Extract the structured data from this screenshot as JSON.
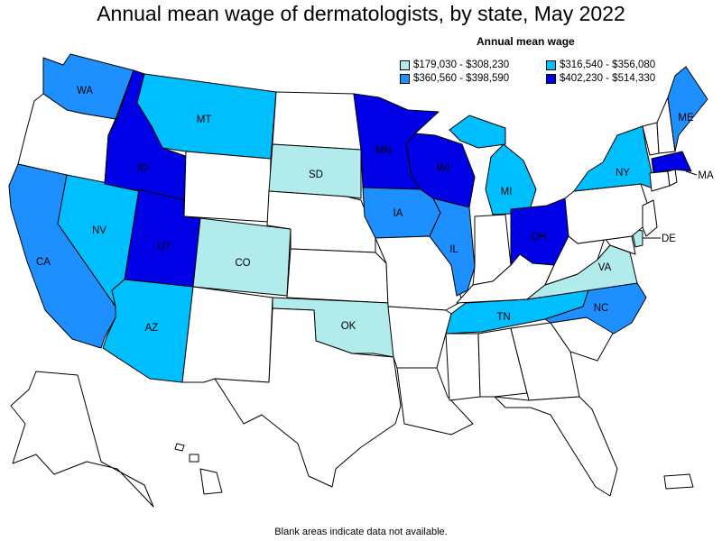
{
  "title": "Annual mean wage of dermatologists, by state, May 2022",
  "legend": {
    "title": "Annual mean wage",
    "items": [
      {
        "label": "$179,030 - $308,230",
        "color": "#b2ebeb"
      },
      {
        "label": "$316,540 - $356,080",
        "color": "#00bfff"
      },
      {
        "label": "$360,560 - $398,590",
        "color": "#1e8fff"
      },
      {
        "label": "$402,230 - $514,330",
        "color": "#0000e6"
      }
    ]
  },
  "footnote": "Blank areas indicate data not available.",
  "colors": {
    "no_data": "#ffffff",
    "tier1": "#b2ebeb",
    "tier2": "#00bfff",
    "tier3": "#1e8fff",
    "tier4": "#0000e6"
  },
  "state_labels": {
    "WA": "WA",
    "MT": "MT",
    "ID": "ID",
    "SD": "SD",
    "MN": "MN",
    "WI": "WI",
    "MI": "MI",
    "NY": "NY",
    "ME": "ME",
    "MA": "MA",
    "NV": "NV",
    "UT": "UT",
    "CO": "CO",
    "IA": "IA",
    "IL": "IL",
    "OH": "OH",
    "DE": "DE",
    "VA": "VA",
    "CA": "CA",
    "AZ": "AZ",
    "OK": "OK",
    "TN": "TN",
    "NC": "NC"
  }
}
